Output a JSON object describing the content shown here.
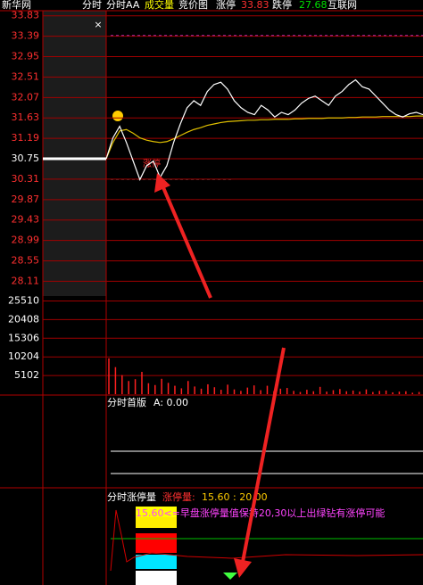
{
  "header": {
    "items": [
      {
        "text": "新华网",
        "color": "#ffffff"
      },
      {
        "text": "分时",
        "color": "#ffffff"
      },
      {
        "text": "分时AA",
        "color": "#ffffff"
      },
      {
        "text": "成交量",
        "color": "#ffff00"
      },
      {
        "text": "竞价图",
        "color": "#ffffff"
      },
      {
        "text": "涨停",
        "color": "#ffffff"
      },
      {
        "text": "33.83",
        "color": "#ff3030"
      },
      {
        "text": "跌停",
        "color": "#ffffff"
      },
      {
        "text": "27.68",
        "color": "#00e000"
      },
      {
        "text": "互联网",
        "color": "#ffffff"
      }
    ]
  },
  "close_button": "×",
  "price_panel": {
    "ylim": [
      27.83,
      33.94
    ],
    "yticks": [
      33.83,
      33.39,
      32.95,
      32.51,
      32.07,
      31.63,
      31.19,
      30.75,
      30.31,
      29.87,
      29.43,
      28.99,
      28.55,
      28.11
    ],
    "prev_close": 30.75,
    "marker_text": "涨停",
    "price": [
      30.75,
      31.2,
      31.45,
      31.1,
      30.7,
      30.3,
      30.6,
      30.7,
      30.35,
      30.6,
      31.1,
      31.5,
      31.85,
      32.0,
      31.9,
      32.2,
      32.35,
      32.4,
      32.25,
      32.0,
      31.85,
      31.75,
      31.7,
      31.9,
      31.8,
      31.65,
      31.75,
      31.7,
      31.8,
      31.95,
      32.05,
      32.1,
      32.0,
      31.9,
      32.1,
      32.2,
      32.35,
      32.45,
      32.3,
      32.25,
      32.1,
      31.95,
      31.8,
      31.7,
      31.65,
      31.72,
      31.75,
      31.7
    ],
    "average": [
      30.75,
      31.1,
      31.35,
      31.38,
      31.3,
      31.2,
      31.15,
      31.12,
      31.1,
      31.12,
      31.18,
      31.25,
      31.32,
      31.38,
      31.42,
      31.47,
      31.5,
      31.53,
      31.55,
      31.56,
      31.57,
      31.58,
      31.58,
      31.59,
      31.59,
      31.6,
      31.6,
      31.6,
      31.61,
      31.61,
      31.62,
      31.62,
      31.62,
      31.63,
      31.63,
      31.63,
      31.64,
      31.64,
      31.65,
      31.65,
      31.65,
      31.66,
      31.66,
      31.66,
      31.66,
      31.66,
      31.67,
      31.67
    ]
  },
  "volume_panel": {
    "ylim": [
      0,
      26360
    ],
    "yticks": [
      25510,
      20408,
      15306,
      10204,
      5102
    ],
    "volume": [
      9800,
      7400,
      5200,
      3600,
      4100,
      6100,
      3000,
      2500,
      4200,
      3100,
      2300,
      1600,
      3600,
      2100,
      1500,
      2700,
      1900,
      1200,
      2600,
      1300,
      900,
      1800,
      2400,
      1100,
      2300,
      800,
      1500,
      1700,
      900,
      600,
      1200,
      800,
      2000,
      700,
      1100,
      1400,
      800,
      1000,
      700,
      1300,
      600,
      900,
      1000,
      500,
      700,
      800,
      400,
      600
    ]
  },
  "indicator_panel": {
    "title": "分时首版",
    "value_label": "A: 0.00"
  },
  "limit_panel": {
    "title": "分时涨停量",
    "parts": [
      "涨停量:",
      "15.60 : 20.00"
    ],
    "note": "15.60<=早盘涨停量值保持20,30以上出绿钻有涨停可能"
  }
}
